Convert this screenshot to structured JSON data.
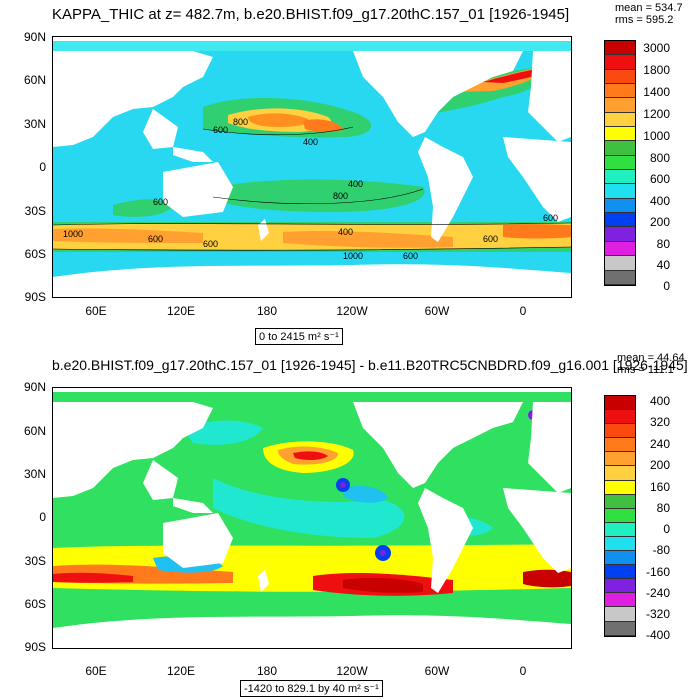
{
  "panel1": {
    "title": "KAPPA_THIC at z= 482.7m, b.e20.BHIST.f09_g17.20thC.157_01 [1926-1945]",
    "mean": "mean = 534.7",
    "rms": "rms = 595.2",
    "range_label": "0 to 2415 m² s⁻¹",
    "lat_ticks": [
      "90N",
      "60N",
      "30N",
      "0",
      "30S",
      "60S",
      "90S"
    ],
    "lon_ticks": [
      "60E",
      "120E",
      "180",
      "120W",
      "60W",
      "0"
    ],
    "contour_labels": [
      "800",
      "600",
      "400",
      "400",
      "800",
      "600",
      "600",
      "1000",
      "600",
      "600",
      "400",
      "600",
      "1000",
      "600"
    ],
    "colorbar": {
      "labels": [
        "3000",
        "1800",
        "1400",
        "1200",
        "1000",
        "800",
        "600",
        "400",
        "200",
        "80",
        "40",
        "0"
      ],
      "colors": [
        "#c80000",
        "#ee1010",
        "#fa4a10",
        "#ff7a1a",
        "#ffa030",
        "#ffd040",
        "#ffff00",
        "#40c040",
        "#30e040",
        "#20f0c0",
        "#20e0f0",
        "#1090f0",
        "#0040f0",
        "#8020e0",
        "#e020e0",
        "#c8c8c8",
        "#707070"
      ]
    }
  },
  "panel2": {
    "title": "b.e20.BHIST.f09_g17.20thC.157_01 [1926-1945] - b.e11.B20TRC5CNBDRD.f09_g16.001 [1926-1945]",
    "mean": "mean = 44.64",
    "rms": "rms = 111.1",
    "range_label": "-1420 to 829.1 by 40 m² s⁻¹",
    "lat_ticks": [
      "90N",
      "60N",
      "30N",
      "0",
      "30S",
      "60S",
      "90S"
    ],
    "lon_ticks": [
      "60E",
      "120E",
      "180",
      "120W",
      "60W",
      "0"
    ],
    "colorbar": {
      "labels": [
        "400",
        "320",
        "240",
        "200",
        "160",
        "80",
        "0",
        "-80",
        "-160",
        "-240",
        "-320",
        "-400"
      ],
      "colors": [
        "#c80000",
        "#ee1010",
        "#fa4a10",
        "#ff7a1a",
        "#ffa030",
        "#ffd040",
        "#ffff00",
        "#40c040",
        "#30e040",
        "#20f0c0",
        "#20e0f0",
        "#1090f0",
        "#0040f0",
        "#8020e0",
        "#e020e0",
        "#c8c8c8",
        "#707070"
      ]
    }
  }
}
